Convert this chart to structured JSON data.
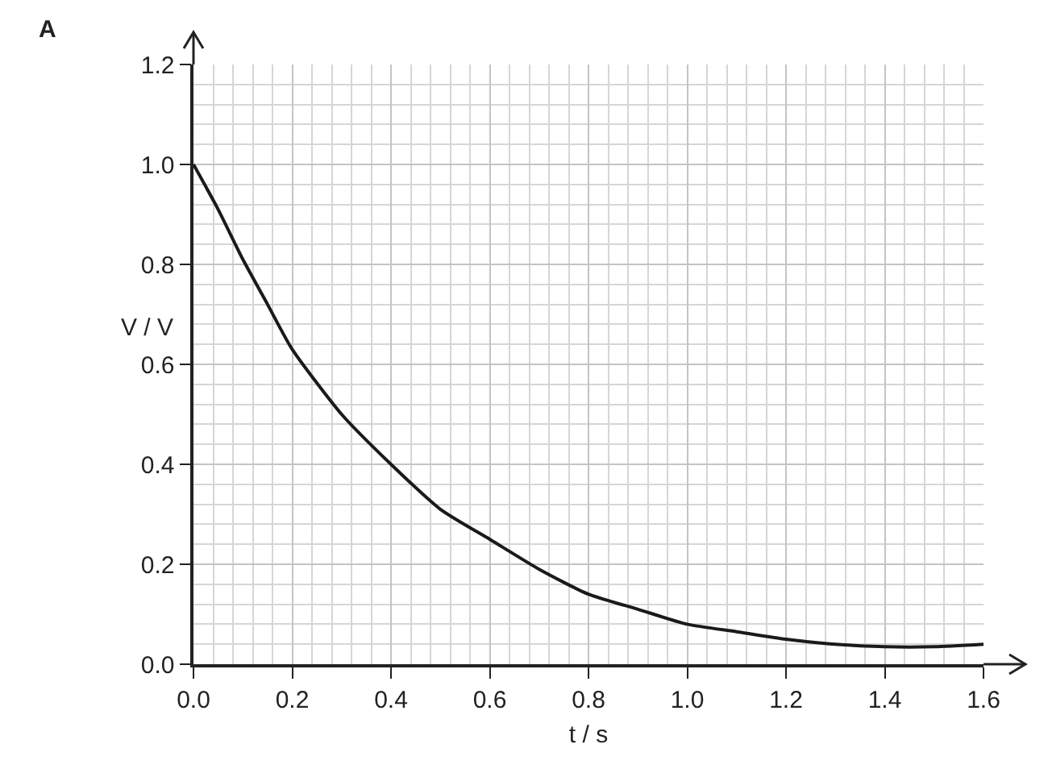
{
  "chart_data": {
    "type": "line",
    "xlabel": "t / s",
    "ylabel": "V / V",
    "annotations": [
      "A"
    ],
    "x": [
      0,
      0.05,
      0.1,
      0.15,
      0.2,
      0.3,
      0.4,
      0.5,
      0.6,
      0.7,
      0.8,
      0.9,
      1.0,
      1.1,
      1.2,
      1.3,
      1.4,
      1.5,
      1.6
    ],
    "series": [
      {
        "color": "#1a1a1a",
        "values": [
          1.0,
          0.91,
          0.81,
          0.72,
          0.63,
          0.5,
          0.4,
          0.31,
          0.25,
          0.19,
          0.14,
          0.11,
          0.08,
          0.065,
          0.05,
          0.04,
          0.035,
          0.035,
          0.04
        ]
      }
    ],
    "xlim": [
      0,
      1.6
    ],
    "ylim": [
      0,
      1.2
    ],
    "xticks": [
      {
        "value": 0,
        "label": "0.0"
      },
      0.2,
      0.4,
      0.6,
      0.8,
      {
        "value": 1,
        "label": "1.0"
      },
      1.2,
      1.4,
      1.6
    ],
    "yticks": [
      {
        "value": 0,
        "label": "0.0"
      },
      0.2,
      0.4,
      0.6,
      0.8,
      {
        "value": 1,
        "label": "1.0"
      },
      1.2
    ],
    "grid": true,
    "marker": "none",
    "line_style": "solid"
  }
}
